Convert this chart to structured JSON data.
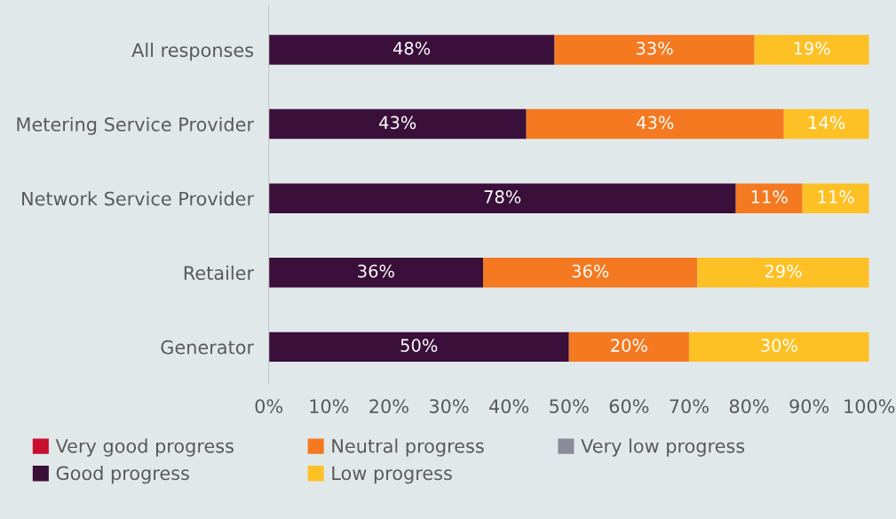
{
  "chart_data": {
    "type": "bar",
    "orientation": "horizontal",
    "stacked": true,
    "categories": [
      "All responses",
      "Metering Service Provider",
      "Network Service Provider",
      "Retailer",
      "Generator"
    ],
    "series": [
      {
        "name": "Very good progress",
        "color": "#c8102e",
        "values": [
          0,
          0,
          0,
          0,
          0
        ],
        "value_labels": [
          null,
          null,
          null,
          null,
          null
        ]
      },
      {
        "name": "Good progress",
        "color": "#3a0f3a",
        "values": [
          47.6,
          42.9,
          77.8,
          35.7,
          50
        ],
        "value_labels": [
          "48%",
          "43%",
          "78%",
          "36%",
          "50%"
        ]
      },
      {
        "name": "Neutral progress",
        "color": "#f47920",
        "values": [
          33.3,
          42.9,
          11.1,
          35.7,
          20
        ],
        "value_labels": [
          "33%",
          "43%",
          "11%",
          "36%",
          "20%"
        ]
      },
      {
        "name": "Low progress",
        "color": "#fdc125",
        "values": [
          19.1,
          14.2,
          11.1,
          28.6,
          30
        ],
        "value_labels": [
          "19%",
          "14%",
          "11%",
          "29%",
          "30%"
        ]
      },
      {
        "name": "Very low progress",
        "color": "#8a8a9a",
        "values": [
          0,
          0,
          0,
          0,
          0
        ],
        "value_labels": [
          null,
          null,
          null,
          null,
          null
        ]
      }
    ],
    "xlim": [
      0,
      100
    ],
    "xticks": [
      {
        "value": 0,
        "label": "0%"
      },
      {
        "value": 10,
        "label": "10%"
      },
      {
        "value": 20,
        "label": "20%"
      },
      {
        "value": 30,
        "label": "30%"
      },
      {
        "value": 40,
        "label": "40%"
      },
      {
        "value": 50,
        "label": "50%"
      },
      {
        "value": 60,
        "label": "60%"
      },
      {
        "value": 70,
        "label": "70%"
      },
      {
        "value": 80,
        "label": "80%"
      },
      {
        "value": 90,
        "label": "90%"
      },
      {
        "value": 100,
        "label": "100%"
      }
    ],
    "grid": false,
    "legend": "bottom"
  }
}
